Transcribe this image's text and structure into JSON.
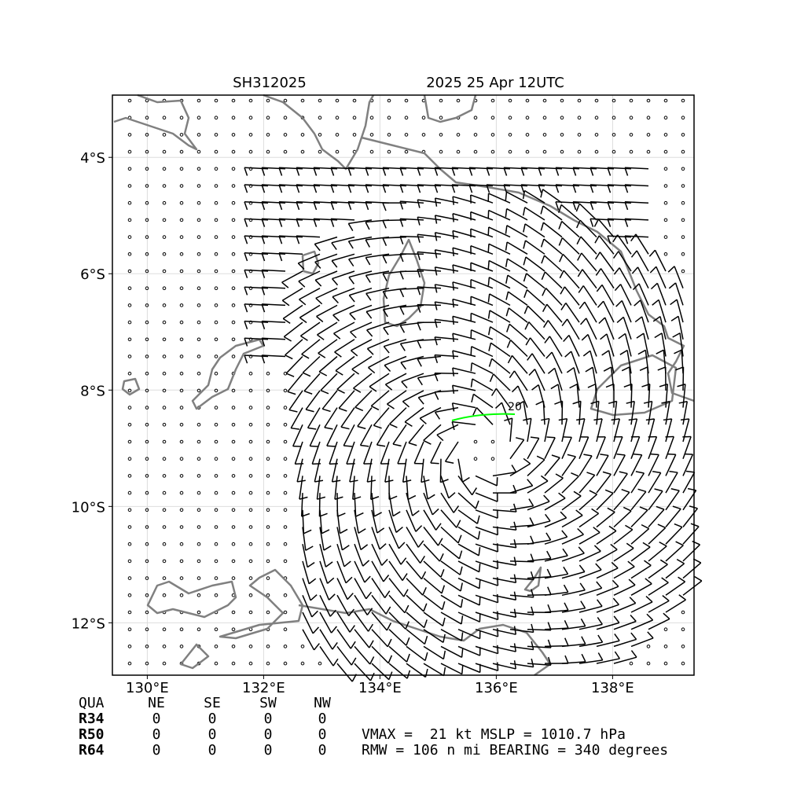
{
  "header": {
    "storm_id": "SH312025",
    "time": "2025 25 Apr 12UTC"
  },
  "map": {
    "xlim": [
      129.4,
      139.4
    ],
    "ylim": [
      -12.9,
      -2.93
    ],
    "xticks": [
      {
        "value": 130,
        "label": "130°E"
      },
      {
        "value": 132,
        "label": "132°E"
      },
      {
        "value": 134,
        "label": "134°E"
      },
      {
        "value": 136,
        "label": "136°E"
      },
      {
        "value": 138,
        "label": "138°E"
      }
    ],
    "yticks": [
      {
        "value": -4,
        "label": "4°S"
      },
      {
        "value": -6,
        "label": "6°S"
      },
      {
        "value": -8,
        "label": "8°S"
      },
      {
        "value": -10,
        "label": "10°S"
      },
      {
        "value": -12,
        "label": "12°S"
      }
    ],
    "grid": true,
    "contour_label": "20"
  },
  "table": {
    "columns": [
      "QUA",
      "NE",
      "SE",
      "SW",
      "NW"
    ],
    "rows": [
      [
        "R34",
        "0",
        "0",
        "0",
        "0"
      ],
      [
        "R50",
        "0",
        "0",
        "0",
        "0"
      ],
      [
        "R64",
        "0",
        "0",
        "0",
        "0"
      ]
    ]
  },
  "stats": [
    "VMAX =  21 kt MSLP = 1010.7 hPa",
    "RMW = 106 n mi BEARING = 340 degrees"
  ]
}
